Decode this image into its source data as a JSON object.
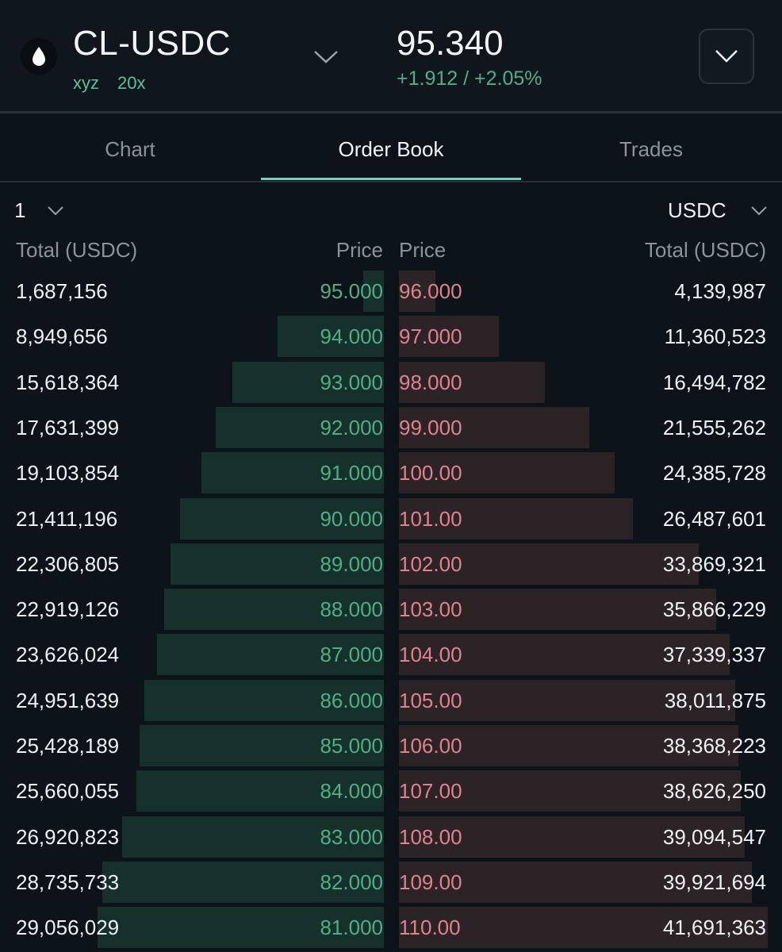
{
  "header": {
    "symbol": "CL-USDC",
    "dex": "xyz",
    "leverage": "20x",
    "price": "95.340",
    "change": "+1.912 / +2.05%",
    "icons": {
      "logo": "droplet-icon",
      "symbol_dropdown": "chevron-down-icon",
      "menu": "chevron-down-icon"
    }
  },
  "tabs": [
    {
      "label": "Chart",
      "active": false
    },
    {
      "label": "Order Book",
      "active": true
    },
    {
      "label": "Trades",
      "active": false
    }
  ],
  "controls": {
    "tick_size": "1",
    "currency": "USDC"
  },
  "columns": {
    "bid_total": "Total (USDC)",
    "bid_price": "Price",
    "ask_price": "Price",
    "ask_total": "Total (USDC)"
  },
  "colors": {
    "background": "#0d1419",
    "bid_text": "#4fae86",
    "ask_text": "#e0828e",
    "bid_depth": "#16302b",
    "ask_depth": "#2c2327",
    "accent": "#6fd2c0"
  },
  "order_book": {
    "bids": [
      {
        "price": "95.000",
        "total": "1,687,156",
        "depth": 0.053
      },
      {
        "price": "94.000",
        "total": "8,949,656",
        "depth": 0.277
      },
      {
        "price": "93.000",
        "total": "15,618,364",
        "depth": 0.394
      },
      {
        "price": "92.000",
        "total": "17,631,399",
        "depth": 0.437
      },
      {
        "price": "91.000",
        "total": "19,103,854",
        "depth": 0.475
      },
      {
        "price": "90.000",
        "total": "21,411,196",
        "depth": 0.532
      },
      {
        "price": "89.000",
        "total": "22,306,805",
        "depth": 0.555
      },
      {
        "price": "88.000",
        "total": "22,919,126",
        "depth": 0.572
      },
      {
        "price": "87.000",
        "total": "23,626,024",
        "depth": 0.59
      },
      {
        "price": "86.000",
        "total": "24,951,639",
        "depth": 0.624
      },
      {
        "price": "85.000",
        "total": "25,428,189",
        "depth": 0.637
      },
      {
        "price": "84.000",
        "total": "25,660,055",
        "depth": 0.645
      },
      {
        "price": "83.000",
        "total": "26,920,823",
        "depth": 0.682
      },
      {
        "price": "82.000",
        "total": "28,735,733",
        "depth": 0.733
      },
      {
        "price": "81.000",
        "total": "29,056,029",
        "depth": 0.746
      }
    ],
    "asks": [
      {
        "price": "96.000",
        "total": "4,139,987",
        "depth": 0.099
      },
      {
        "price": "97.000",
        "total": "11,360,523",
        "depth": 0.272
      },
      {
        "price": "98.000",
        "total": "16,494,782",
        "depth": 0.396
      },
      {
        "price": "99.000",
        "total": "21,555,262",
        "depth": 0.517
      },
      {
        "price": "100.00",
        "total": "24,385,728",
        "depth": 0.585
      },
      {
        "price": "101.00",
        "total": "26,487,601",
        "depth": 0.635
      },
      {
        "price": "102.00",
        "total": "33,869,321",
        "depth": 0.812
      },
      {
        "price": "103.00",
        "total": "35,866,229",
        "depth": 0.86
      },
      {
        "price": "104.00",
        "total": "37,339,337",
        "depth": 0.896
      },
      {
        "price": "105.00",
        "total": "38,011,875",
        "depth": 0.912
      },
      {
        "price": "106.00",
        "total": "38,368,223",
        "depth": 0.92
      },
      {
        "price": "107.00",
        "total": "38,626,250",
        "depth": 0.927
      },
      {
        "price": "108.00",
        "total": "39,094,547",
        "depth": 0.938
      },
      {
        "price": "109.00",
        "total": "39,921,694",
        "depth": 0.958
      },
      {
        "price": "110.00",
        "total": "41,691,363",
        "depth": 1.0
      }
    ]
  }
}
